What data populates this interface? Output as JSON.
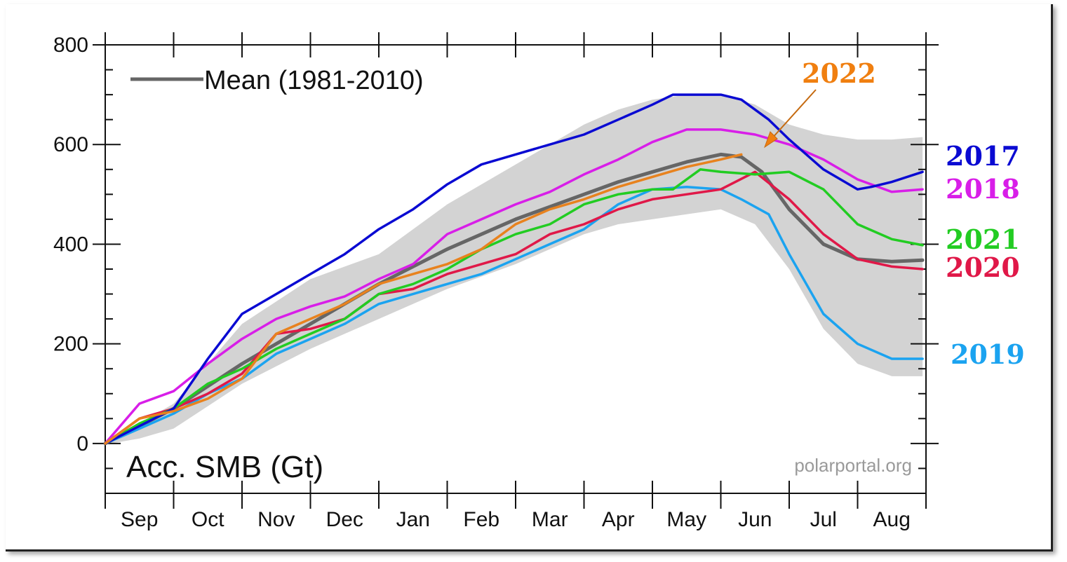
{
  "chart_data": {
    "type": "line",
    "ylabel": "Acc. SMB (Gt)",
    "source": "polarportal.org",
    "ylim": [
      -100,
      800
    ],
    "yticks": [
      0,
      200,
      400,
      600,
      800
    ],
    "months": [
      "Sep",
      "Oct",
      "Nov",
      "Dec",
      "Jan",
      "Feb",
      "Mar",
      "Apr",
      "May",
      "Jun",
      "Jul",
      "Aug"
    ],
    "x_unit": "months since 1 Sep",
    "grid": false,
    "legend": {
      "label": "Mean (1981-2010)",
      "position": "top-left"
    },
    "range_band": {
      "x": [
        0,
        0.5,
        1,
        2,
        3,
        4,
        5,
        6,
        7,
        7.5,
        8,
        8.5,
        9,
        9.5,
        10,
        10.5,
        11,
        11.5,
        11.95
      ],
      "upper": [
        2,
        40,
        80,
        240,
        330,
        380,
        480,
        560,
        640,
        670,
        690,
        700,
        700,
        680,
        640,
        620,
        610,
        610,
        615
      ],
      "lower": [
        -2,
        10,
        30,
        120,
        190,
        250,
        310,
        360,
        420,
        440,
        450,
        460,
        470,
        440,
        350,
        230,
        160,
        135,
        135
      ]
    },
    "series": [
      {
        "name": "Mean (1981-2010)",
        "color": "#666666",
        "x": [
          0,
          0.5,
          1,
          2,
          3,
          4,
          5,
          6,
          7,
          7.5,
          8,
          8.5,
          9,
          9.3,
          9.6,
          10,
          10.5,
          11,
          11.5,
          11.95
        ],
        "y": [
          0,
          35,
          70,
          160,
          240,
          320,
          390,
          450,
          500,
          525,
          545,
          565,
          580,
          575,
          545,
          470,
          400,
          370,
          365,
          368
        ]
      },
      {
        "name": "2017",
        "color": "#0a0ad2",
        "x": [
          0,
          0.5,
          1,
          1.5,
          2,
          2.5,
          3,
          3.5,
          4,
          4.5,
          5,
          5.5,
          6,
          6.5,
          7,
          7.5,
          8,
          8.3,
          8.7,
          9,
          9.3,
          9.7,
          10,
          10.5,
          11,
          11.2,
          11.5,
          11.95
        ],
        "y": [
          0,
          35,
          70,
          170,
          260,
          300,
          340,
          380,
          430,
          470,
          520,
          560,
          580,
          600,
          620,
          650,
          680,
          700,
          700,
          700,
          690,
          650,
          610,
          550,
          510,
          515,
          525,
          545
        ]
      },
      {
        "name": "2018",
        "color": "#d81ee8",
        "x": [
          0,
          0.5,
          1,
          1.5,
          2,
          2.5,
          3,
          3.5,
          4,
          4.5,
          5,
          5.5,
          6,
          6.5,
          7,
          7.5,
          8,
          8.5,
          9,
          9.5,
          10,
          10.5,
          11,
          11.5,
          11.95
        ],
        "y": [
          0,
          80,
          105,
          160,
          210,
          250,
          275,
          295,
          330,
          360,
          420,
          450,
          480,
          505,
          540,
          570,
          605,
          630,
          630,
          620,
          600,
          570,
          530,
          505,
          510
        ]
      },
      {
        "name": "2021",
        "color": "#22cc22",
        "x": [
          0,
          0.5,
          1,
          1.5,
          2,
          2.5,
          3,
          3.5,
          4,
          4.5,
          5,
          5.5,
          6,
          6.5,
          7,
          7.5,
          8,
          8.3,
          8.7,
          9,
          9.5,
          10,
          10.5,
          11,
          11.5,
          11.95
        ],
        "y": [
          0,
          40,
          70,
          120,
          150,
          190,
          220,
          250,
          300,
          320,
          350,
          390,
          420,
          440,
          480,
          500,
          510,
          510,
          550,
          545,
          540,
          545,
          510,
          440,
          410,
          398
        ]
      },
      {
        "name": "2020",
        "color": "#e01848",
        "x": [
          0,
          0.5,
          1,
          1.5,
          2,
          2.5,
          3,
          3.5,
          4,
          4.5,
          5,
          5.5,
          6,
          6.5,
          7,
          7.5,
          8,
          8.5,
          9,
          9.5,
          10,
          10.5,
          11,
          11.5,
          11.95
        ],
        "y": [
          0,
          50,
          70,
          100,
          140,
          220,
          230,
          250,
          300,
          310,
          340,
          360,
          380,
          420,
          440,
          470,
          490,
          500,
          510,
          545,
          490,
          420,
          370,
          355,
          350
        ]
      },
      {
        "name": "2019",
        "color": "#1ba3f0",
        "x": [
          0,
          0.5,
          1,
          1.5,
          2,
          2.5,
          3,
          3.5,
          4,
          4.5,
          5,
          5.5,
          6,
          6.5,
          7,
          7.5,
          8,
          8.5,
          9,
          9.3,
          9.7,
          10,
          10.5,
          11,
          11.5,
          11.95
        ],
        "y": [
          0,
          30,
          60,
          100,
          130,
          180,
          210,
          240,
          280,
          300,
          320,
          340,
          370,
          400,
          430,
          480,
          510,
          515,
          510,
          490,
          460,
          380,
          260,
          200,
          170,
          170
        ]
      },
      {
        "name": "2022",
        "color": "#e8821e",
        "x": [
          0,
          0.5,
          1,
          1.5,
          2,
          2.5,
          3,
          3.5,
          4,
          4.5,
          5,
          5.5,
          6,
          6.5,
          7,
          7.5,
          8,
          8.5,
          9,
          9.3
        ],
        "y": [
          0,
          50,
          65,
          90,
          130,
          220,
          250,
          280,
          320,
          340,
          360,
          390,
          440,
          470,
          490,
          515,
          535,
          555,
          570,
          580
        ]
      }
    ],
    "annotations": [
      {
        "text": "2022",
        "color": "#f07f10",
        "points_to": {
          "x": 9.3,
          "y": 580
        }
      }
    ],
    "right_labels": [
      {
        "text": "2017",
        "color": "#0a0ad2"
      },
      {
        "text": "2018",
        "color": "#d81ee8"
      },
      {
        "text": "2021",
        "color": "#22cc22"
      },
      {
        "text": "2020",
        "color": "#e01848"
      },
      {
        "text": "2019",
        "color": "#1ba3f0"
      }
    ]
  }
}
